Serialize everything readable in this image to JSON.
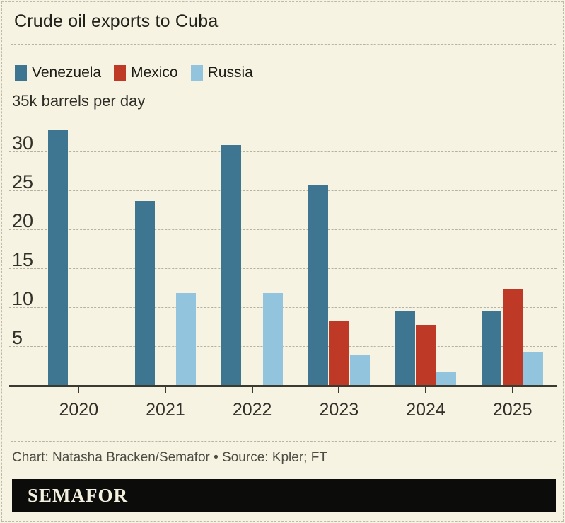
{
  "header": {
    "title": "Crude oil exports to Cuba"
  },
  "legend": {
    "items": [
      "Venezuela",
      "Mexico",
      "Russia"
    ]
  },
  "chart_data": {
    "type": "bar",
    "title": "Crude oil exports to Cuba",
    "unit_label": "35k barrels per day",
    "categories": [
      "2020",
      "2021",
      "2022",
      "2023",
      "2024",
      "2025"
    ],
    "series": [
      {
        "name": "Venezuela",
        "color": "#3e7590",
        "values": [
          32.9,
          23.8,
          31.0,
          25.8,
          9.7,
          9.6
        ]
      },
      {
        "name": "Mexico",
        "color": "#bf3a26",
        "values": [
          null,
          null,
          null,
          8.4,
          7.9,
          12.5
        ]
      },
      {
        "name": "Russia",
        "color": "#92c5dd",
        "values": [
          null,
          12.0,
          12.0,
          4.0,
          1.9,
          4.4
        ]
      }
    ],
    "ylim": [
      0,
      35
    ],
    "yticks": [
      5,
      10,
      15,
      20,
      25,
      30
    ],
    "grid": "dashed horizontal",
    "legend_position": "top-left"
  },
  "footer": {
    "credit": "Chart: Natasha Bracken/Semafor • Source: Kpler; FT"
  },
  "logo": {
    "text": "SEMAFOR"
  }
}
